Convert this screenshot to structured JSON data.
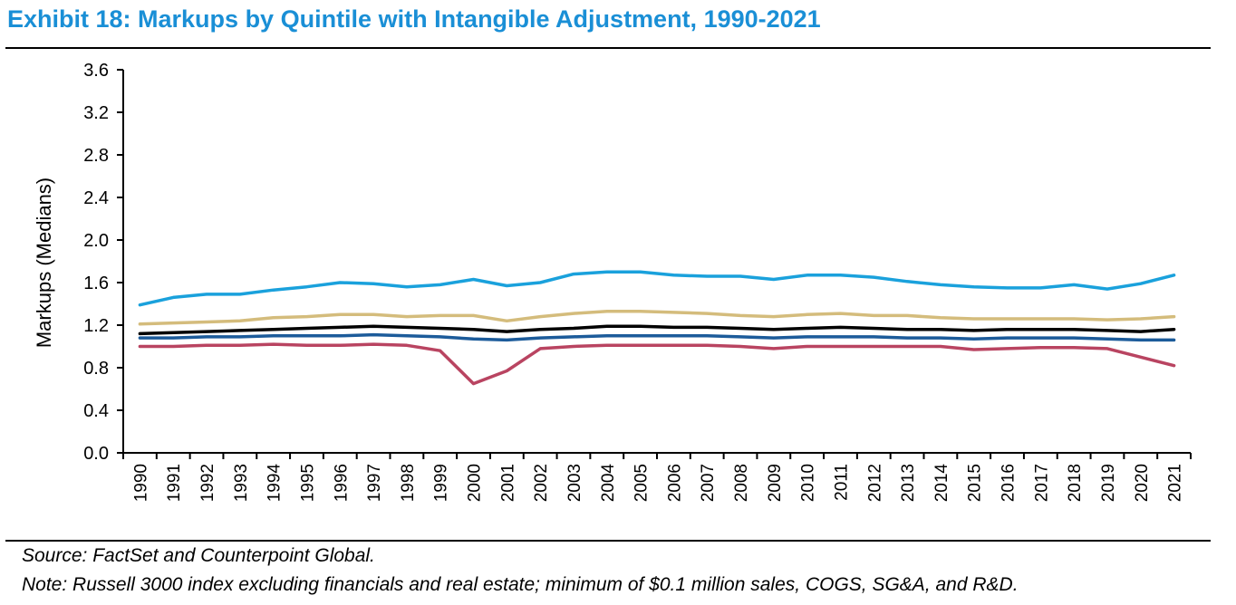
{
  "title": "Exhibit 18: Markups by Quintile with Intangible Adjustment, 1990-2021",
  "notes": {
    "source": "Source: FactSet and Counterpoint Global.",
    "detail": "Note: Russell 3000 index excluding financials and real estate; minimum of $0.1 million sales, COGS, SG&A, and R&D."
  },
  "chart_data": {
    "type": "line",
    "ylabel": "Markups (Medians)",
    "xlabel": "",
    "ylim": [
      0.0,
      3.6
    ],
    "yticks": [
      0.0,
      0.4,
      0.8,
      1.2,
      1.6,
      2.0,
      2.4,
      2.8,
      3.2,
      3.6
    ],
    "ytick_labels": [
      "0.0",
      "0.4",
      "0.8",
      "1.2",
      "1.6",
      "2.0",
      "2.4",
      "2.8",
      "3.2",
      "3.6"
    ],
    "grid": false,
    "legend": "none",
    "x": [
      "1990",
      "1991",
      "1992",
      "1993",
      "1994",
      "1995",
      "1996",
      "1997",
      "1998",
      "1999",
      "2000",
      "2001",
      "2002",
      "2003",
      "2004",
      "2005",
      "2006",
      "2007",
      "2008",
      "2009",
      "2010",
      "2011",
      "2012",
      "2013",
      "2014",
      "2015",
      "2016",
      "2017",
      "2018",
      "2019",
      "2020",
      "2021"
    ],
    "series": [
      {
        "color": "#1aa1dc",
        "values": [
          1.39,
          1.46,
          1.49,
          1.49,
          1.53,
          1.56,
          1.6,
          1.59,
          1.56,
          1.58,
          1.63,
          1.57,
          1.6,
          1.68,
          1.7,
          1.7,
          1.67,
          1.66,
          1.66,
          1.63,
          1.67,
          1.67,
          1.65,
          1.61,
          1.58,
          1.56,
          1.55,
          1.55,
          1.58,
          1.54,
          1.59,
          1.67
        ]
      },
      {
        "color": "#d4bc7c",
        "values": [
          1.21,
          1.22,
          1.23,
          1.24,
          1.27,
          1.28,
          1.3,
          1.3,
          1.28,
          1.29,
          1.29,
          1.24,
          1.28,
          1.31,
          1.33,
          1.33,
          1.32,
          1.31,
          1.29,
          1.28,
          1.3,
          1.31,
          1.29,
          1.29,
          1.27,
          1.26,
          1.26,
          1.26,
          1.26,
          1.25,
          1.26,
          1.28
        ]
      },
      {
        "color": "#000000",
        "values": [
          1.12,
          1.13,
          1.14,
          1.15,
          1.16,
          1.17,
          1.18,
          1.19,
          1.18,
          1.17,
          1.16,
          1.14,
          1.16,
          1.17,
          1.19,
          1.19,
          1.18,
          1.18,
          1.17,
          1.16,
          1.17,
          1.18,
          1.17,
          1.16,
          1.16,
          1.15,
          1.16,
          1.16,
          1.16,
          1.15,
          1.14,
          1.16
        ]
      },
      {
        "color": "#1c5b9a",
        "values": [
          1.08,
          1.08,
          1.09,
          1.09,
          1.1,
          1.1,
          1.1,
          1.11,
          1.1,
          1.09,
          1.07,
          1.06,
          1.08,
          1.09,
          1.1,
          1.1,
          1.1,
          1.1,
          1.09,
          1.08,
          1.09,
          1.09,
          1.09,
          1.08,
          1.08,
          1.07,
          1.08,
          1.08,
          1.08,
          1.07,
          1.06,
          1.06
        ]
      },
      {
        "color": "#b94461",
        "values": [
          1.0,
          1.0,
          1.01,
          1.01,
          1.02,
          1.01,
          1.01,
          1.02,
          1.01,
          0.96,
          0.65,
          0.77,
          0.98,
          1.0,
          1.01,
          1.01,
          1.01,
          1.01,
          1.0,
          0.98,
          1.0,
          1.0,
          1.0,
          1.0,
          1.0,
          0.97,
          0.98,
          0.99,
          0.99,
          0.98,
          0.9,
          0.82
        ]
      }
    ]
  }
}
